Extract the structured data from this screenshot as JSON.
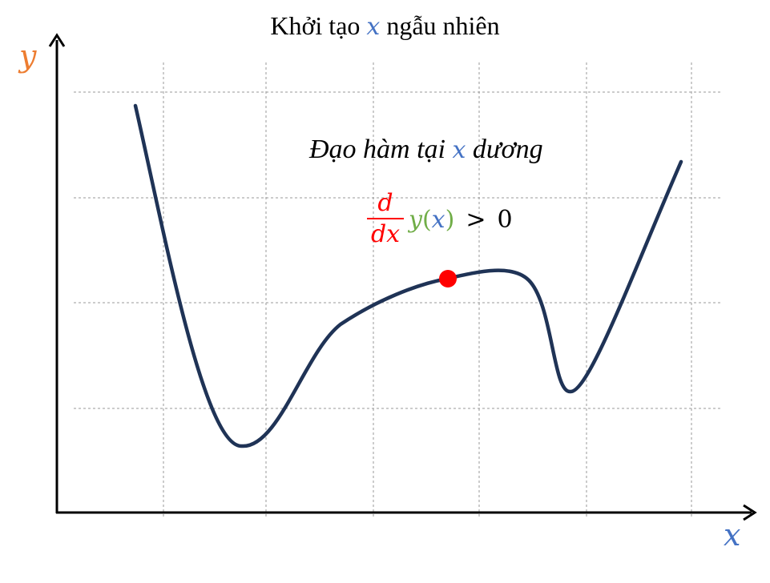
{
  "title": {
    "prefix": "Khởi tạo ",
    "var": "x",
    "suffix": " ngẫu nhiên"
  },
  "axes": {
    "y_label": "y",
    "x_label": "x"
  },
  "annotation": {
    "prefix": "Đạo hàm tại ",
    "var": "x",
    "suffix": " dương"
  },
  "formula": {
    "numerator": "d",
    "denominator": "dx",
    "function": "y",
    "open_paren": "(",
    "argument": "x",
    "close_paren": ")",
    "relation": ">",
    "rhs": "0"
  },
  "colors": {
    "curve": "#1f3356",
    "point": "#ff0000",
    "x_var": "#4472c4",
    "y_var": "#ed7d31",
    "derivative": "#ff0000",
    "function": "#70ad47",
    "grid": "#9a9a9a",
    "axis": "#000000"
  }
}
